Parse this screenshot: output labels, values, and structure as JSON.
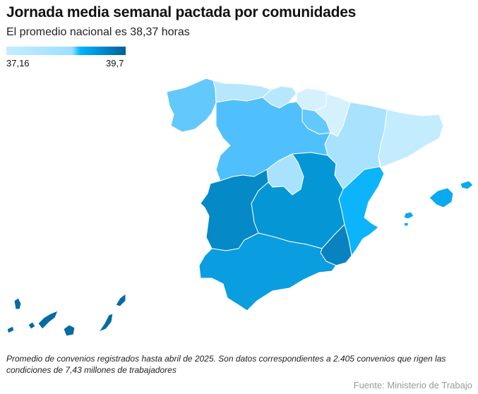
{
  "title": "Jornada media semanal pactada por comunidades",
  "subtitle": "El promedio nacional es 38,37 horas",
  "legend": {
    "min_label": "37,16",
    "max_label": "39,7",
    "colors": [
      "#c4ecff",
      "#9edfff",
      "#00b4ff",
      "#005f99"
    ]
  },
  "note": "Promedio de convenios registrados hasta abril de 2025. Son datos correspondientes a 2.405 convenios que rigen las condiciones de 7,43 millones de trabajadores",
  "source": "Fuente: Ministerio de Trabajo",
  "regions": [
    {
      "name": "Galicia",
      "color": "#63c8fb"
    },
    {
      "name": "Asturias",
      "color": "#b7e7fd"
    },
    {
      "name": "Cantabria",
      "color": "#b7e7fd"
    },
    {
      "name": "País Vasco",
      "color": "#d6f1fe"
    },
    {
      "name": "Navarra",
      "color": "#d6f1fe"
    },
    {
      "name": "La Rioja",
      "color": "#63c8fb"
    },
    {
      "name": "Aragón",
      "color": "#a8e2fd"
    },
    {
      "name": "Cataluña",
      "color": "#c4ecff"
    },
    {
      "name": "Castilla y León",
      "color": "#4fc0fb"
    },
    {
      "name": "Madrid",
      "color": "#a8e2fd"
    },
    {
      "name": "Castilla-La Mancha",
      "color": "#0596d6"
    },
    {
      "name": "Extremadura",
      "color": "#0589c7"
    },
    {
      "name": "Comunidad Valenciana",
      "color": "#0bb4fb"
    },
    {
      "name": "Región de Murcia",
      "color": "#0982c1"
    },
    {
      "name": "Andalucía",
      "color": "#0a9ee0"
    },
    {
      "name": "Islas Baleares",
      "color": "#0aaaf0"
    },
    {
      "name": "Canarias",
      "color": "#066aa3"
    }
  ]
}
